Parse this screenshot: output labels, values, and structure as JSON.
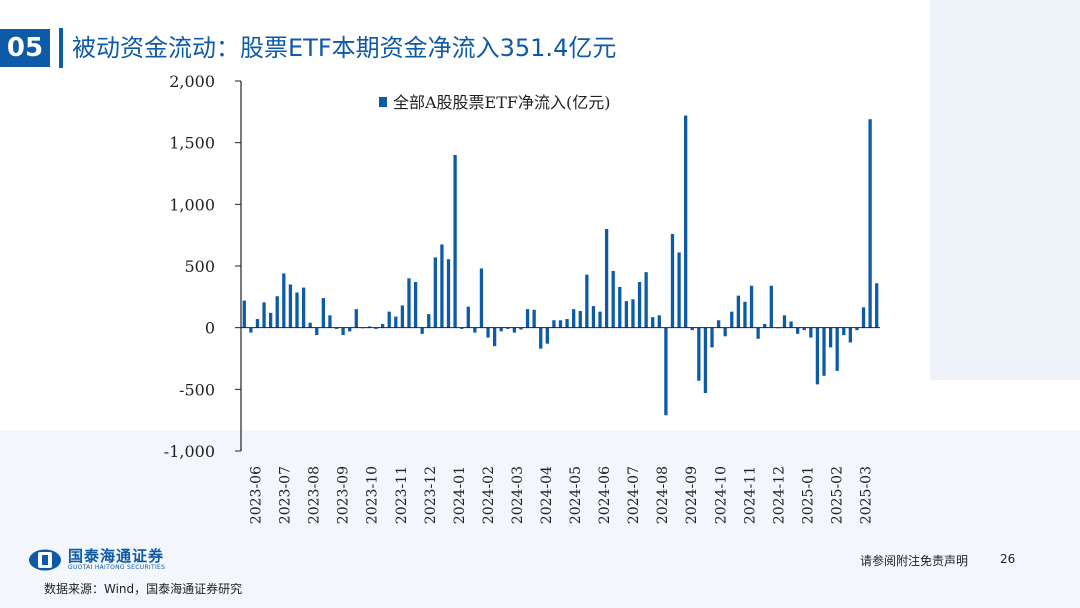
{
  "header": {
    "slide_number": "05",
    "title": "被动资金流动：股票ETF本期资金净流入351.4亿元"
  },
  "footer": {
    "logo_cn": "国泰海通证券",
    "logo_en": "GUOTAI HAITONG SECURITIES",
    "source": "数据来源：Wind，国泰海通证券研究",
    "disclaimer": "请参阅附注免责声明",
    "page": "26"
  },
  "colors": {
    "accent": "#0d5aa7",
    "bar": "#0d5aa7"
  },
  "chart_data": {
    "type": "bar",
    "legend": "全部A股股票ETF净流入(亿元)",
    "legend_position": "top",
    "ylim": [
      -1000,
      2000
    ],
    "yticks": [
      2000,
      1500,
      1000,
      500,
      0,
      -500,
      -1000
    ],
    "ytick_labels": [
      "2,000",
      "1,500",
      "1,000",
      "500",
      "0",
      "-500",
      "-1,000"
    ],
    "xtick_labels": [
      "2023-06",
      "2023-07",
      "2023-08",
      "2023-09",
      "2023-10",
      "2023-11",
      "2023-12",
      "2024-01",
      "2024-02",
      "2024-03",
      "2024-04",
      "2024-05",
      "2024-06",
      "2024-07",
      "2024-08",
      "2024-09",
      "2024-10",
      "2024-11",
      "2024-12",
      "2025-01",
      "2025-02",
      "2025-03"
    ],
    "grid": false,
    "series": [
      {
        "values": [
          220,
          -40,
          70,
          205,
          120,
          255,
          440,
          350,
          285,
          325,
          40,
          -60,
          240,
          100,
          -10,
          -60,
          -30,
          150,
          -5,
          10,
          -10,
          30,
          130,
          90,
          180,
          400,
          370,
          -50,
          110,
          570,
          675,
          555,
          1400,
          -10,
          170,
          -40,
          480,
          -80,
          -150,
          -30,
          -10,
          -40,
          -15,
          150,
          145,
          -170,
          -130,
          60,
          60,
          70,
          150,
          135,
          430,
          175,
          130,
          800,
          460,
          330,
          215,
          230,
          370,
          450,
          85,
          100,
          -710,
          760,
          610,
          1720,
          -20,
          -430,
          -530,
          -160,
          60,
          -70,
          130,
          260,
          210,
          340,
          -90,
          30,
          340,
          -5,
          100,
          50,
          -50,
          -20,
          -80,
          -460,
          -390,
          -160,
          -350,
          -60,
          -120,
          -20,
          165,
          1690,
          360
        ]
      }
    ]
  }
}
